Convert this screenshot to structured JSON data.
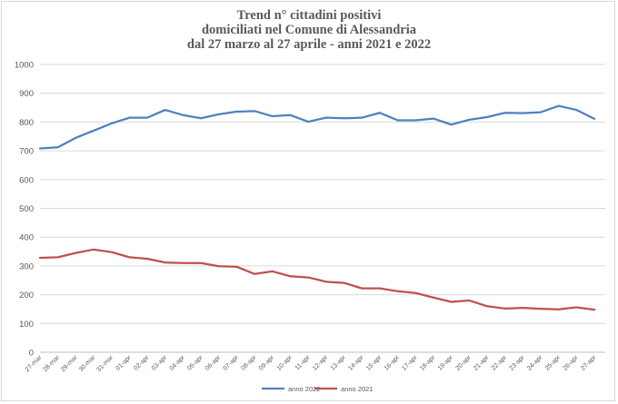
{
  "chart_data": {
    "type": "line",
    "title": [
      "Trend n° cittadini positivi",
      "domiciliati nel Comune di Alessandria",
      "dal 27 marzo al 27 aprile - anni 2021 e 2022"
    ],
    "xlabel": "",
    "ylabel": "",
    "ylim": [
      0,
      1000
    ],
    "yticks": [
      "0",
      "100",
      "200",
      "300",
      "400",
      "500",
      "600",
      "700",
      "800",
      "900",
      "1000"
    ],
    "grid": true,
    "legend_position": "bottom",
    "categories": [
      "27-mar",
      "28-mar",
      "29-mar",
      "30-mar",
      "31-mar",
      "01-apr",
      "02-apr",
      "03-apr",
      "04-apr",
      "05-apr",
      "06-apr",
      "07-apr",
      "08-apr",
      "09-apr",
      "10-apr",
      "11-apr",
      "12-apr",
      "13-apr",
      "14-apr",
      "15-apr",
      "16-apr",
      "17-apr",
      "18-apr",
      "19-apr",
      "20-apr",
      "21-apr",
      "22-apr",
      "23-apr",
      "24-apr",
      "25-apr",
      "26-apr",
      "27-apr"
    ],
    "series": [
      {
        "name": "anno 2022",
        "color": "#4f81bd",
        "values": [
          708,
          712,
          745,
          770,
          795,
          815,
          815,
          842,
          824,
          813,
          827,
          836,
          838,
          820,
          824,
          801,
          815,
          813,
          815,
          832,
          806,
          806,
          812,
          791,
          808,
          817,
          832,
          831,
          834,
          856,
          842,
          811
        ]
      },
      {
        "name": "anno 2021",
        "color": "#c0504d",
        "values": [
          328,
          330,
          345,
          357,
          348,
          330,
          325,
          312,
          310,
          310,
          299,
          297,
          272,
          281,
          264,
          260,
          245,
          241,
          222,
          222,
          212,
          206,
          190,
          175,
          180,
          160,
          152,
          154,
          151,
          149,
          156,
          148
        ]
      }
    ]
  }
}
